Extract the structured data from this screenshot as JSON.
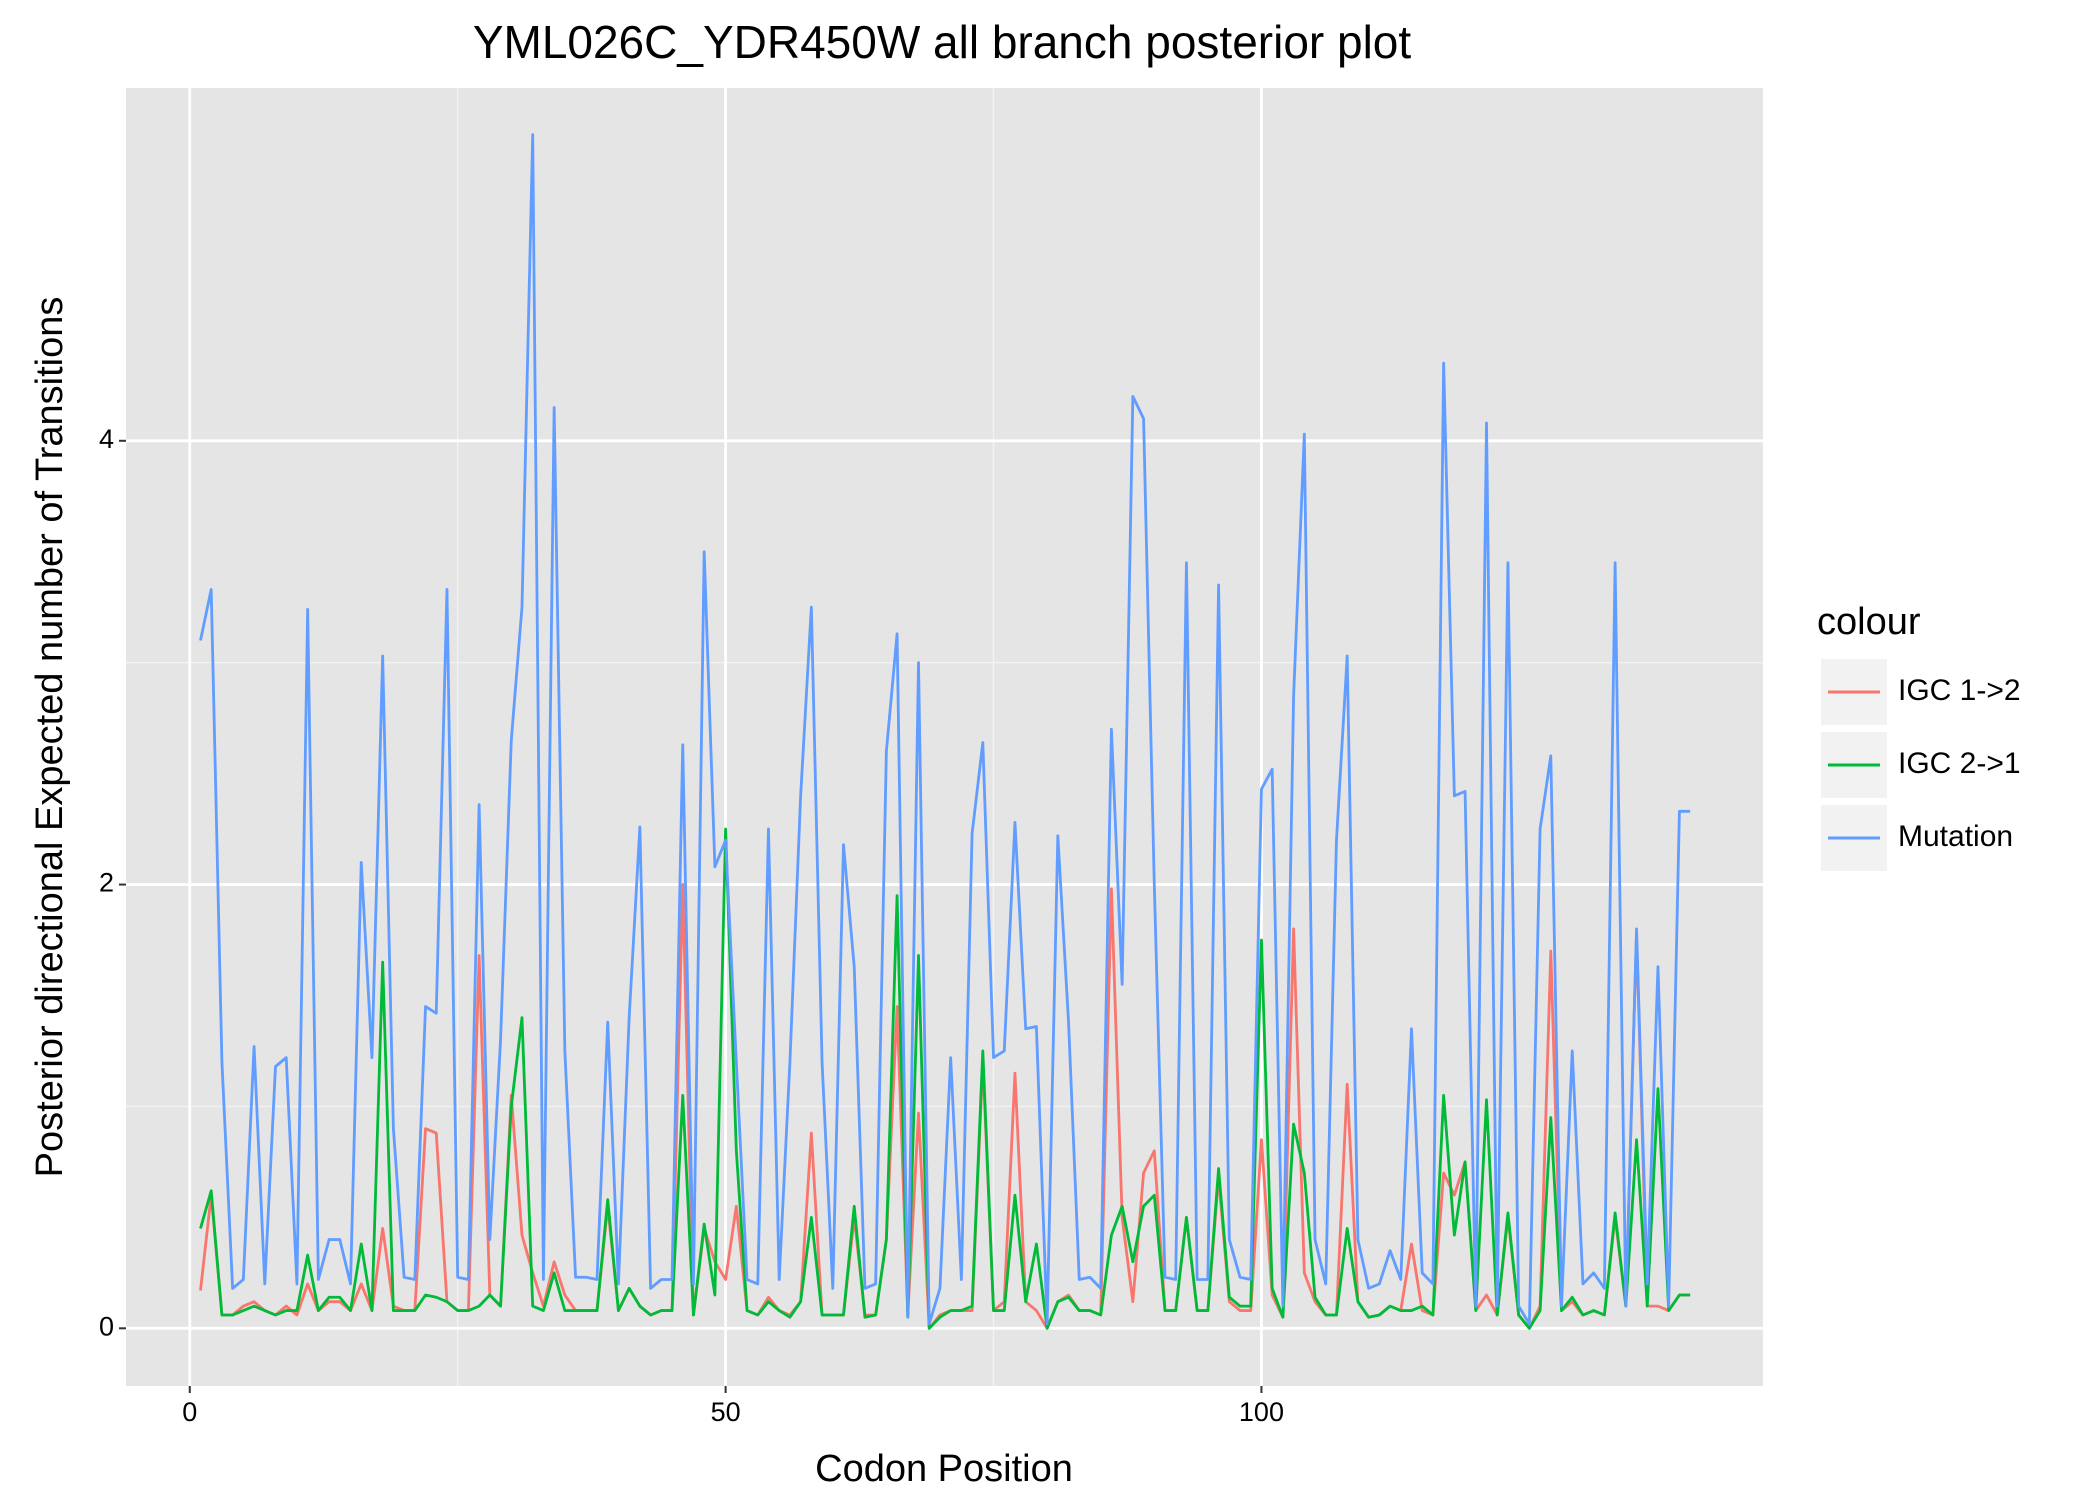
{
  "chart_data": {
    "type": "line",
    "title": "YML026C_YDR450W all branch posterior plot",
    "x_label": "Codon Position",
    "y_label": "Posterior directional Expected number of Transitions",
    "legend_title": "colour",
    "legend": "right",
    "grid": true,
    "xlim": [
      -5.95,
      146.8
    ],
    "ylim": [
      -0.26,
      5.59
    ],
    "xticks": [
      0,
      50,
      100
    ],
    "yticks": [
      0,
      2,
      4
    ],
    "x": [
      1,
      2,
      3,
      4,
      5,
      6,
      7,
      8,
      9,
      10,
      11,
      12,
      13,
      14,
      15,
      16,
      17,
      18,
      19,
      20,
      21,
      22,
      23,
      24,
      25,
      26,
      27,
      28,
      29,
      30,
      31,
      32,
      33,
      34,
      35,
      36,
      37,
      38,
      39,
      40,
      41,
      42,
      43,
      44,
      45,
      46,
      47,
      48,
      49,
      50,
      51,
      52,
      53,
      54,
      55,
      56,
      57,
      58,
      59,
      60,
      61,
      62,
      63,
      64,
      65,
      66,
      67,
      68,
      69,
      70,
      71,
      72,
      73,
      74,
      75,
      76,
      77,
      78,
      79,
      80,
      81,
      82,
      83,
      84,
      85,
      86,
      87,
      88,
      89,
      90,
      91,
      92,
      93,
      94,
      95,
      96,
      97,
      98,
      99,
      100,
      101,
      102,
      103,
      104,
      105,
      106,
      107,
      108,
      109,
      110,
      111,
      112,
      113,
      114,
      115,
      116,
      117,
      118,
      119,
      120,
      121,
      122,
      123,
      124,
      125,
      126,
      127,
      128,
      129,
      130,
      131,
      132,
      133,
      134,
      135,
      136,
      137,
      138,
      139,
      140
    ],
    "series": [
      {
        "name": "IGC 1->2",
        "color": "#F8766D",
        "values": [
          0.17,
          0.6,
          0.06,
          0.06,
          0.1,
          0.12,
          0.08,
          0.06,
          0.1,
          0.06,
          0.2,
          0.08,
          0.12,
          0.12,
          0.08,
          0.2,
          0.08,
          0.45,
          0.1,
          0.08,
          0.08,
          0.9,
          0.88,
          0.12,
          0.08,
          0.08,
          1.68,
          0.15,
          0.1,
          1.05,
          0.42,
          0.25,
          0.1,
          0.3,
          0.15,
          0.08,
          0.08,
          0.08,
          0.55,
          0.08,
          0.18,
          0.1,
          0.06,
          0.08,
          0.08,
          2.0,
          0.06,
          0.45,
          0.3,
          0.22,
          0.55,
          0.08,
          0.06,
          0.14,
          0.08,
          0.06,
          0.12,
          0.88,
          0.06,
          0.06,
          0.06,
          0.5,
          0.06,
          0.06,
          0.4,
          1.45,
          0.06,
          0.97,
          0.0,
          0.06,
          0.08,
          0.08,
          0.08,
          1.2,
          0.08,
          0.12,
          1.15,
          0.12,
          0.08,
          0.0,
          0.12,
          0.15,
          0.08,
          0.08,
          0.06,
          1.98,
          0.5,
          0.12,
          0.7,
          0.8,
          0.08,
          0.08,
          0.5,
          0.08,
          0.08,
          0.68,
          0.12,
          0.08,
          0.08,
          0.85,
          0.15,
          0.05,
          1.8,
          0.25,
          0.12,
          0.06,
          0.06,
          1.1,
          0.12,
          0.05,
          0.06,
          0.1,
          0.08,
          0.38,
          0.08,
          0.06,
          0.7,
          0.6,
          0.75,
          0.08,
          0.15,
          0.06,
          0.5,
          0.06,
          0.0,
          0.1,
          1.7,
          0.08,
          0.12,
          0.06,
          0.08,
          0.06,
          0.5,
          0.1,
          1.78,
          0.1,
          0.1,
          0.08,
          0.15,
          0.15
        ]
      },
      {
        "name": "IGC 2->1",
        "color": "#00BA38",
        "values": [
          0.45,
          0.62,
          0.06,
          0.06,
          0.08,
          0.1,
          0.08,
          0.06,
          0.08,
          0.08,
          0.33,
          0.08,
          0.14,
          0.14,
          0.08,
          0.38,
          0.08,
          1.65,
          0.08,
          0.08,
          0.08,
          0.15,
          0.14,
          0.12,
          0.08,
          0.08,
          0.1,
          0.15,
          0.1,
          1.0,
          1.4,
          0.1,
          0.08,
          0.25,
          0.08,
          0.08,
          0.08,
          0.08,
          0.58,
          0.08,
          0.18,
          0.1,
          0.06,
          0.08,
          0.08,
          1.05,
          0.06,
          0.47,
          0.15,
          2.25,
          0.8,
          0.08,
          0.06,
          0.12,
          0.08,
          0.05,
          0.12,
          0.5,
          0.06,
          0.06,
          0.06,
          0.55,
          0.05,
          0.06,
          0.4,
          1.95,
          0.05,
          1.68,
          0.0,
          0.05,
          0.08,
          0.08,
          0.1,
          1.25,
          0.08,
          0.08,
          0.6,
          0.12,
          0.38,
          0.0,
          0.12,
          0.14,
          0.08,
          0.08,
          0.06,
          0.42,
          0.55,
          0.3,
          0.55,
          0.6,
          0.08,
          0.08,
          0.5,
          0.08,
          0.08,
          0.72,
          0.14,
          0.1,
          0.1,
          1.75,
          0.18,
          0.05,
          0.92,
          0.7,
          0.14,
          0.06,
          0.06,
          0.45,
          0.12,
          0.05,
          0.06,
          0.1,
          0.08,
          0.08,
          0.1,
          0.06,
          1.05,
          0.42,
          0.75,
          0.08,
          1.03,
          0.06,
          0.52,
          0.06,
          0.0,
          0.08,
          0.95,
          0.08,
          0.14,
          0.06,
          0.08,
          0.06,
          0.52,
          0.1,
          0.85,
          0.1,
          1.08,
          0.08,
          0.15,
          0.15
        ]
      },
      {
        "name": "Mutation",
        "color": "#619CFF",
        "values": [
          3.1,
          3.33,
          1.2,
          0.18,
          0.22,
          1.27,
          0.2,
          1.18,
          1.22,
          0.2,
          3.24,
          0.22,
          0.4,
          0.4,
          0.2,
          2.1,
          1.22,
          3.03,
          0.9,
          0.23,
          0.22,
          1.45,
          1.42,
          3.33,
          0.23,
          0.22,
          2.36,
          0.4,
          1.3,
          2.65,
          3.25,
          5.38,
          0.22,
          4.15,
          1.25,
          0.23,
          0.23,
          0.22,
          1.38,
          0.2,
          1.4,
          2.26,
          0.18,
          0.22,
          0.22,
          2.63,
          0.2,
          3.5,
          2.08,
          2.2,
          1.2,
          0.22,
          0.2,
          2.25,
          0.22,
          1.2,
          2.4,
          3.25,
          1.2,
          0.18,
          2.18,
          1.63,
          0.18,
          0.2,
          2.6,
          3.13,
          0.05,
          3.0,
          0.02,
          0.18,
          1.22,
          0.22,
          2.23,
          2.64,
          1.22,
          1.25,
          2.28,
          1.35,
          1.36,
          0.02,
          2.22,
          1.38,
          0.22,
          0.23,
          0.18,
          2.7,
          1.55,
          4.2,
          4.1,
          2.0,
          0.23,
          0.22,
          3.45,
          0.22,
          0.22,
          3.35,
          0.4,
          0.23,
          0.22,
          2.43,
          2.52,
          0.1,
          2.85,
          4.03,
          0.4,
          0.2,
          2.2,
          3.03,
          0.4,
          0.18,
          0.2,
          0.35,
          0.22,
          1.35,
          0.25,
          0.2,
          4.35,
          2.4,
          2.42,
          0.1,
          4.08,
          0.1,
          3.45,
          0.1,
          0.02,
          2.25,
          2.58,
          0.1,
          1.25,
          0.2,
          0.25,
          0.18,
          3.45,
          0.1,
          1.8,
          0.2,
          1.63,
          0.1,
          2.33,
          2.33
        ]
      }
    ]
  }
}
